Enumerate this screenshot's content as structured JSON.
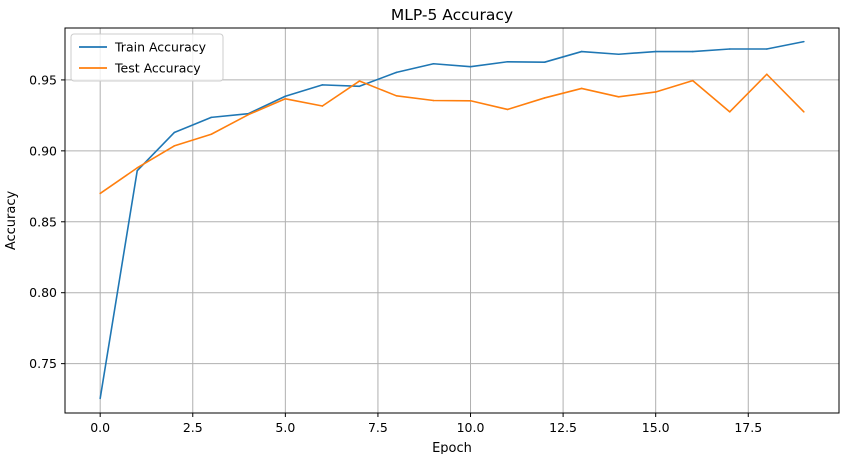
{
  "chart_data": {
    "type": "line",
    "title": "MLP-5 Accuracy",
    "xlabel": "Epoch",
    "ylabel": "Accuracy",
    "xlim": [
      -0.95,
      19.95
    ],
    "ylim": [
      0.7152,
      0.9866
    ],
    "xticks": [
      0.0,
      2.5,
      5.0,
      7.5,
      10.0,
      12.5,
      15.0,
      17.5
    ],
    "xtick_labels": [
      "0.0",
      "2.5",
      "5.0",
      "7.5",
      "10.0",
      "12.5",
      "15.0",
      "17.5"
    ],
    "yticks": [
      0.75,
      0.8,
      0.85,
      0.9,
      0.95
    ],
    "ytick_labels": [
      "0.75",
      "0.80",
      "0.85",
      "0.90",
      "0.95"
    ],
    "grid": true,
    "legend_position": "upper-left",
    "x": [
      0,
      1,
      2,
      3,
      4,
      5,
      6,
      7,
      8,
      9,
      10,
      11,
      12,
      13,
      14,
      15,
      16,
      17,
      18,
      19
    ],
    "series": [
      {
        "name": "Train Accuracy",
        "color": "#1f77b4",
        "values": [
          0.7255,
          0.886,
          0.9129,
          0.9236,
          0.9262,
          0.9385,
          0.9465,
          0.9455,
          0.9553,
          0.9614,
          0.9593,
          0.9628,
          0.9625,
          0.97,
          0.9681,
          0.97,
          0.97,
          0.9718,
          0.9718,
          0.977
        ]
      },
      {
        "name": "Test Accuracy",
        "color": "#ff7f0e",
        "values": [
          0.87,
          0.888,
          0.9035,
          0.9117,
          0.9255,
          0.9367,
          0.9316,
          0.9492,
          0.9388,
          0.9355,
          0.9353,
          0.9292,
          0.9373,
          0.944,
          0.9381,
          0.9415,
          0.9495,
          0.9275,
          0.954,
          0.9275
        ]
      }
    ]
  }
}
